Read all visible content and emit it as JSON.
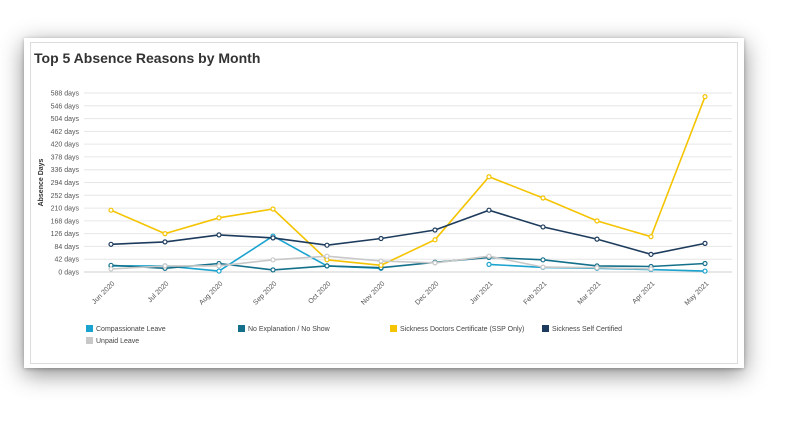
{
  "chart_data": {
    "type": "line",
    "title": "Top 5 Absence Reasons by Month",
    "ylabel": "Absence Days",
    "xlabel": "",
    "y_unit_suffix": " days",
    "ylim": [
      0,
      588
    ],
    "yticks": [
      0,
      42,
      84,
      126,
      168,
      210,
      252,
      294,
      336,
      378,
      420,
      462,
      504,
      546,
      588
    ],
    "categories": [
      "Jun 2020",
      "Jul 2020",
      "Aug 2020",
      "Sep 2020",
      "Oct 2020",
      "Nov 2020",
      "Dec 2020",
      "Jan 2021",
      "Feb 2021",
      "Mar 2021",
      "Apr 2021",
      "May 2021"
    ],
    "grid": true,
    "legend_position": "bottom",
    "series": [
      {
        "name": "Compassionate Leave",
        "color": "#1aa3cf",
        "values": [
          20,
          20,
          3,
          118,
          20,
          12,
          null,
          25,
          15,
          12,
          8,
          3
        ]
      },
      {
        "name": "No Explanation / No Show",
        "color": "#14708a",
        "values": [
          22,
          12,
          28,
          7,
          20,
          14,
          32,
          48,
          40,
          20,
          18,
          28
        ]
      },
      {
        "name": "Sickness Doctors Certificate (SSP Only)",
        "color": "#f5c400",
        "values": [
          203,
          126,
          178,
          207,
          40,
          22,
          106,
          313,
          243,
          168,
          116,
          576
        ]
      },
      {
        "name": "Sickness Self Certified",
        "color": "#1d3b5c",
        "values": [
          91,
          99,
          122,
          112,
          88,
          110,
          138,
          203,
          148,
          108,
          58,
          94
        ]
      },
      {
        "name": "Unpaid Leave",
        "color": "#c8c8c8",
        "values": [
          10,
          20,
          20,
          40,
          52,
          36,
          30,
          52,
          16,
          14,
          10,
          null
        ]
      }
    ]
  }
}
